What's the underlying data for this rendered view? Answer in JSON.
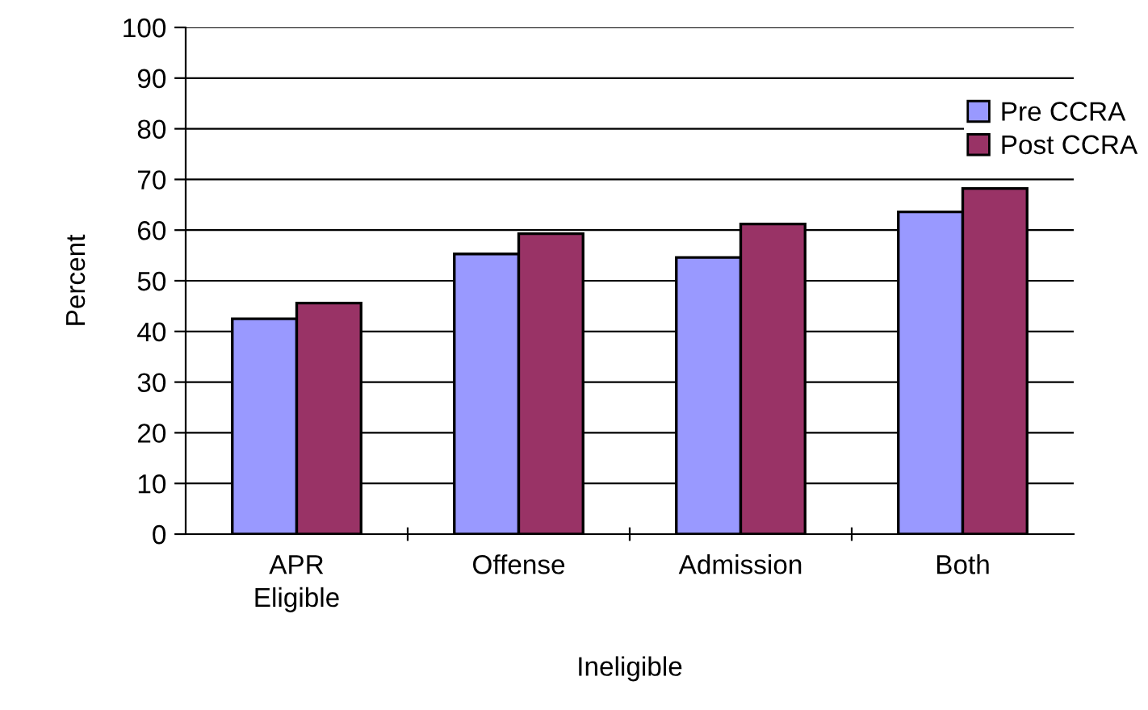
{
  "chart_data": {
    "type": "bar",
    "xlabel": "Ineligible",
    "ylabel": "Percent",
    "categories": [
      "APR\nEligible",
      "Offense",
      "Admission",
      "Both"
    ],
    "series": [
      {
        "name": "Pre CCRA",
        "color": "#9999ff",
        "values": [
          42.5,
          55.3,
          54.6,
          63.6
        ]
      },
      {
        "name": "Post CCRA",
        "color": "#993366",
        "values": [
          45.6,
          59.3,
          61.2,
          68.2
        ]
      }
    ],
    "ylim": [
      0,
      100
    ],
    "yticks": [
      0,
      10,
      20,
      30,
      40,
      50,
      60,
      70,
      80,
      90,
      100
    ],
    "grid": "y",
    "legend": "right"
  }
}
